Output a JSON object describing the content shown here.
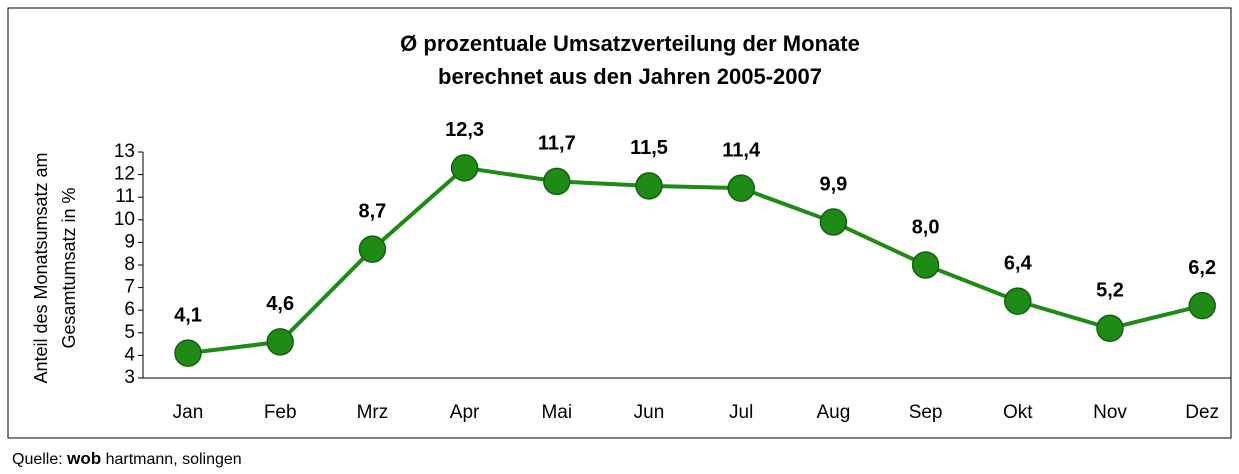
{
  "chart_data": {
    "type": "line",
    "title": [
      "Ø prozentuale Umsatzverteilung der Monate",
      "berechnet aus den Jahren 2005-2007"
    ],
    "ylabel": [
      "Anteil des Monatsumsatz am",
      "Gesamtumsatz in %"
    ],
    "categories": [
      "Jan",
      "Feb",
      "Mrz",
      "Apr",
      "Mai",
      "Jun",
      "Jul",
      "Aug",
      "Sep",
      "Okt",
      "Nov",
      "Dez"
    ],
    "values": [
      4.1,
      4.6,
      8.7,
      12.3,
      11.7,
      11.5,
      11.4,
      9.9,
      8.0,
      6.4,
      5.2,
      6.2
    ],
    "value_labels": [
      "4,1",
      "4,6",
      "8,7",
      "12,3",
      "11,7",
      "11,5",
      "11,4",
      "9,9",
      "8,0",
      "6,4",
      "5,2",
      "6,2"
    ],
    "color": "#1f8a16",
    "ylim": [
      3,
      13
    ],
    "yticks": [
      3,
      4,
      5,
      6,
      7,
      8,
      9,
      10,
      11,
      12,
      13
    ]
  },
  "source": {
    "prefix": "Quelle:",
    "brand": "wob",
    "rest": "hartmann, solingen"
  }
}
